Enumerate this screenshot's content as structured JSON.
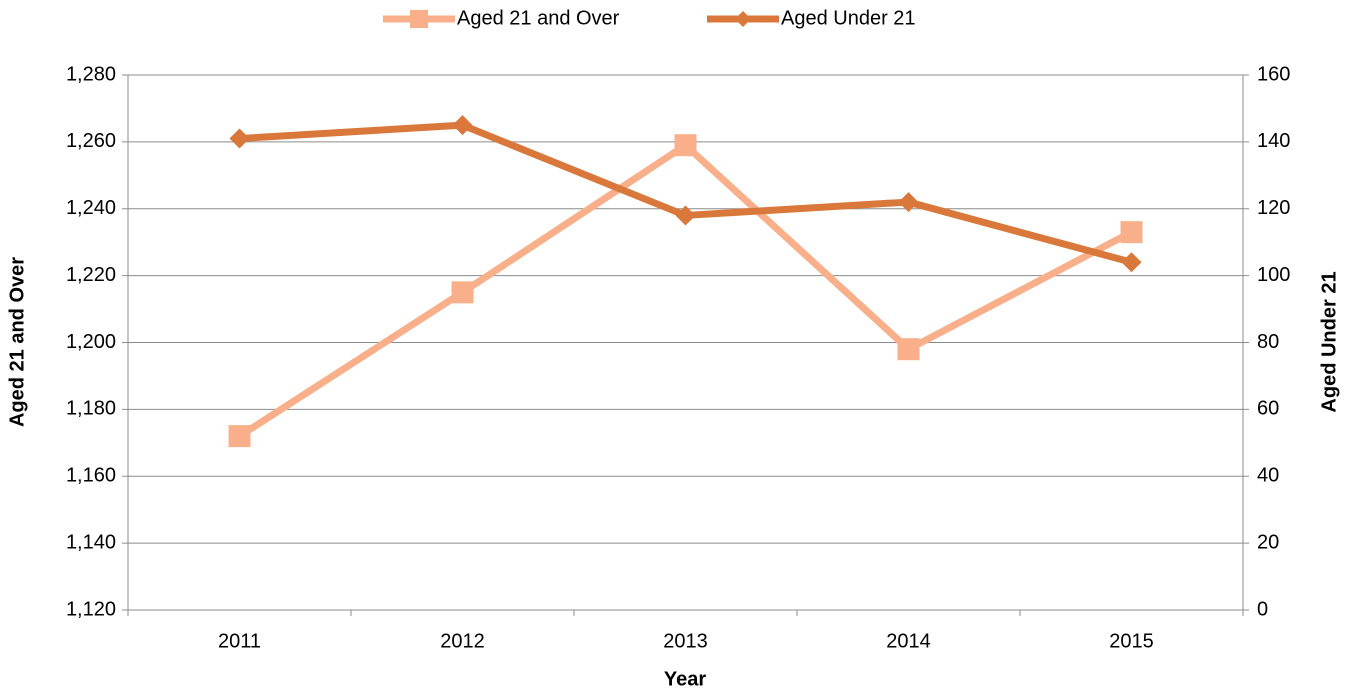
{
  "chart_data": {
    "type": "line",
    "x_label": "Year",
    "y_label": "Aged 21 and Over",
    "y2_label": "Aged Under 21",
    "categories": [
      "2011",
      "2012",
      "2013",
      "2014",
      "2015"
    ],
    "series": [
      {
        "name": "Aged 21 and Over",
        "color": "#f9b08a",
        "marker": "square",
        "values": [
          1172,
          1215,
          1259,
          1198,
          1233
        ]
      },
      {
        "name": "Aged Under 21",
        "color": "#d9783a",
        "marker": "diamond",
        "axis": "y2",
        "values": [
          141,
          145,
          118,
          122,
          104
        ]
      }
    ],
    "ylim": [
      1120,
      1280
    ],
    "yticks": [
      {
        "value": 1120,
        "label": "1,120"
      },
      {
        "value": 1140,
        "label": "1,140"
      },
      {
        "value": 1160,
        "label": "1,160"
      },
      {
        "value": 1180,
        "label": "1,180"
      },
      {
        "value": 1200,
        "label": "1,200"
      },
      {
        "value": 1220,
        "label": "1,220"
      },
      {
        "value": 1240,
        "label": "1,240"
      },
      {
        "value": 1260,
        "label": "1,260"
      },
      {
        "value": 1280,
        "label": "1,280"
      }
    ],
    "y2lim": [
      0,
      160
    ],
    "y2ticks": [
      0,
      20,
      40,
      60,
      80,
      100,
      120,
      140,
      160
    ],
    "grid": true,
    "legend": "top"
  }
}
